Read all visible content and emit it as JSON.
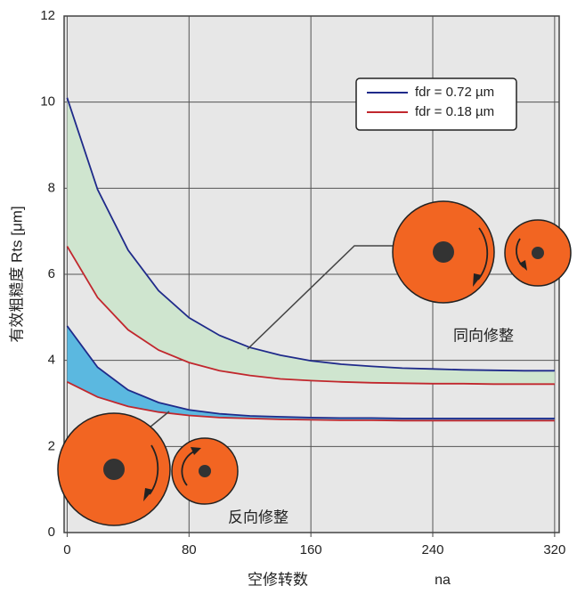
{
  "chart_data": {
    "type": "line",
    "y_label": "有效粗糙度 Rts [μm]",
    "x_label": "空修转数",
    "x_symbol": "na",
    "x": [
      0,
      20,
      40,
      60,
      80,
      100,
      120,
      140,
      160,
      180,
      200,
      220,
      240,
      260,
      280,
      300,
      320
    ],
    "series": [
      {
        "name": "fdr = 0.72 µm",
        "color": "#1f2a8a",
        "fill": "#cfe5cf",
        "values": [
          10.1,
          7.97,
          6.56,
          5.62,
          4.99,
          4.58,
          4.3,
          4.12,
          3.99,
          3.91,
          3.86,
          3.82,
          3.8,
          3.78,
          3.77,
          3.76,
          3.76
        ]
      },
      {
        "name": "fdr = 0.18 µm",
        "color": "#c1272d",
        "values": [
          6.65,
          5.46,
          4.71,
          4.24,
          3.95,
          3.76,
          3.65,
          3.57,
          3.53,
          3.5,
          3.48,
          3.47,
          3.46,
          3.46,
          3.45,
          3.45,
          3.45
        ]
      },
      {
        "color": "#1f2a8a",
        "fill": "#5bb8e0",
        "values": [
          4.8,
          3.84,
          3.31,
          3.02,
          2.85,
          2.76,
          2.71,
          2.69,
          2.67,
          2.66,
          2.66,
          2.65,
          2.65,
          2.65,
          2.65,
          2.65,
          2.65
        ]
      },
      {
        "color": "#c1272d",
        "values": [
          3.5,
          3.15,
          2.93,
          2.8,
          2.72,
          2.67,
          2.65,
          2.63,
          2.62,
          2.61,
          2.61,
          2.6,
          2.6,
          2.6,
          2.6,
          2.6,
          2.6
        ]
      }
    ],
    "annotations": [
      "同向修整",
      "反向修整"
    ],
    "xlim": [
      -2,
      323
    ],
    "xticks": [
      0,
      80,
      160,
      240,
      320
    ],
    "ylim": [
      0,
      12
    ],
    "yticks": [
      0,
      2,
      4,
      6,
      8,
      10,
      12
    ],
    "grid": true,
    "legend": "upper right"
  }
}
